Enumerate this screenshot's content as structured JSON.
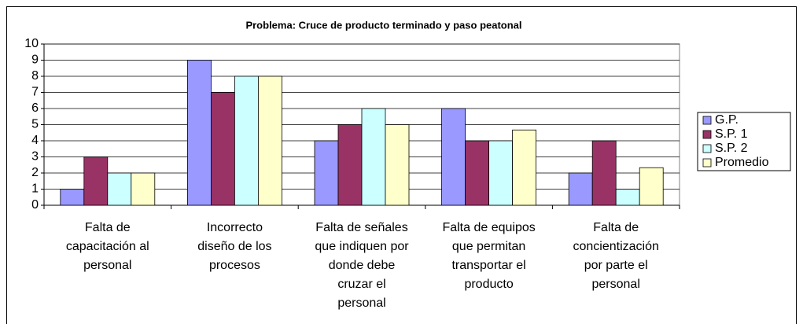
{
  "chart_data": {
    "type": "bar",
    "title": "Problema: Cruce de producto terminado y paso peatonal",
    "categories": [
      "Falta de capacitación al personal",
      "Incorrecto diseño de los procesos",
      "Falta de señales que indiquen por donde debe cruzar el personal",
      "Falta de equipos que permitan transportar el producto",
      "Falta de concientización por parte el personal"
    ],
    "series": [
      {
        "name": "G.P.",
        "color": "#9999ff",
        "values": [
          1,
          9,
          4,
          6,
          2
        ]
      },
      {
        "name": "S.P. 1",
        "color": "#993366",
        "values": [
          3,
          7,
          5,
          4,
          4
        ]
      },
      {
        "name": "S.P. 2",
        "color": "#ccffff",
        "values": [
          2,
          8,
          6,
          4,
          1
        ]
      },
      {
        "name": "Promedio",
        "color": "#ffffcc",
        "values": [
          2,
          8,
          5,
          4.67,
          2.33
        ]
      }
    ],
    "ylim": [
      0,
      10
    ],
    "yticks": [
      0,
      1,
      2,
      3,
      4,
      5,
      6,
      7,
      8,
      9,
      10
    ],
    "grid": true,
    "legend": "right"
  }
}
